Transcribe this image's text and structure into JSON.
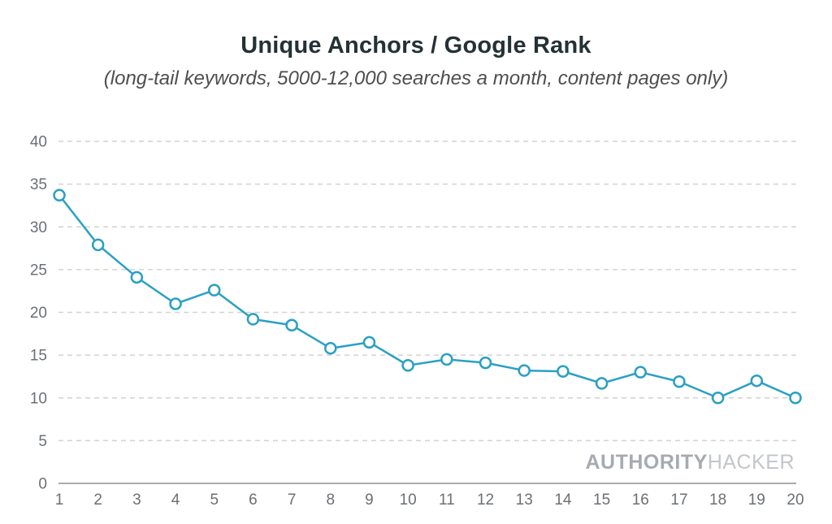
{
  "chart_data": {
    "type": "line",
    "title": "Unique Anchors / Google Rank",
    "subtitle": "(long-tail keywords, 5000-12,000 searches a month, content pages only)",
    "x": [
      1,
      2,
      3,
      4,
      5,
      6,
      7,
      8,
      9,
      10,
      11,
      12,
      13,
      14,
      15,
      16,
      17,
      18,
      19,
      20
    ],
    "series": [
      {
        "name": "unique-anchors",
        "values": [
          33.7,
          27.9,
          24.1,
          21.0,
          22.6,
          19.2,
          18.5,
          15.8,
          16.5,
          13.8,
          14.5,
          14.1,
          13.2,
          13.1,
          11.7,
          13.0,
          11.9,
          10.0,
          12.0,
          10.0
        ]
      }
    ],
    "xlabel": "",
    "ylabel": "",
    "xlim": [
      1,
      20
    ],
    "ylim": [
      0,
      40
    ],
    "xticks": [
      1,
      2,
      3,
      4,
      5,
      6,
      7,
      8,
      9,
      10,
      11,
      12,
      13,
      14,
      15,
      16,
      17,
      18,
      19,
      20
    ],
    "yticks": [
      0,
      5,
      10,
      15,
      20,
      25,
      30,
      35,
      40
    ],
    "grid": "horizontal-dashed",
    "legend": "none",
    "marker": "open-circle",
    "line_color": "#2aa0c4"
  },
  "watermark": {
    "bold": "AUTHORITY",
    "light": "HACKER"
  },
  "colors": {
    "background": "#ffffff",
    "line": "#2aa0c4",
    "marker_fill": "#ffffff",
    "grid": "#d2d2d2",
    "axis": "#acacac",
    "tick_label": "#6b7075",
    "title": "#243135",
    "subtitle": "#4e4e4e",
    "watermark_bold": "#a6abb1",
    "watermark_light": "#c2c6ca"
  }
}
